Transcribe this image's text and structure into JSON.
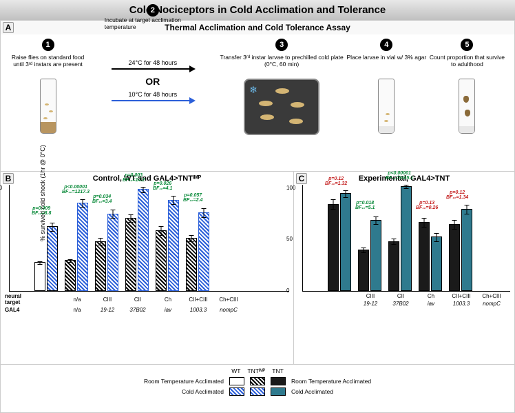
{
  "title": "Cold Nociceptors in Cold Acclimation and Tolerance",
  "panelA": {
    "subtitle": "Thermal Acclimation and Cold Tolerance Assay",
    "steps": [
      {
        "n": "1",
        "label": "Raise flies on standard food until 3ʳᵈ instars are present"
      },
      {
        "n": "2",
        "label": "Incubate at target acclimation temperature"
      },
      {
        "n": "3",
        "label": "Transfer 3ʳᵈ instar larvae to prechilled cold plate (0°C, 60 min)"
      },
      {
        "n": "4",
        "label": "Place larvae in vial w/ 3% agar"
      },
      {
        "n": "5",
        "label": "Count proportion that survive to adulthood"
      }
    ],
    "cond1": "24°C for 48 hours",
    "cond2": "10°C for 48 hours",
    "or": "OR"
  },
  "panelB": {
    "title": "Control, WT and GAL4>TNTᴵᴹᴾ",
    "ylabel": "% survived cold shock (1hr @ 0°C)",
    "ymax": 100,
    "groups": [
      {
        "nt": "n/a",
        "gal4": "n/a",
        "rt": 27,
        "ca": 61,
        "rt_err": 7,
        "ca_err": 7,
        "style": "wt",
        "p": "p=0.009",
        "bf": "BF₁₀=8.8"
      },
      {
        "nt": "CIII",
        "gal4": "19-12",
        "rt": 29,
        "ca": 83,
        "rt_err": 6,
        "ca_err": 5,
        "style": "imp",
        "p": "p<0.00001",
        "bf": "BF₁₀=1217.3"
      },
      {
        "nt": "CII",
        "gal4": "37B02",
        "rt": 47,
        "ca": 73,
        "rt_err": 8,
        "ca_err": 6,
        "style": "imp",
        "p": "p=0.034",
        "bf": "BF₁₀=3.4"
      },
      {
        "nt": "Ch",
        "gal4": "iav",
        "rt": 69,
        "ca": 96,
        "rt_err": 6,
        "ca_err": 3,
        "style": "imp",
        "p": "p=0.003",
        "bf": "BF₁₀=14.2"
      },
      {
        "nt": "CII+CIII",
        "gal4": "1003.3",
        "rt": 57,
        "ca": 86,
        "rt_err": 8,
        "ca_err": 5,
        "style": "imp",
        "p": "p=0.026",
        "bf": "BF₁₀=4.1"
      },
      {
        "nt": "Ch+CIII",
        "gal4": "nompC",
        "rt": 50,
        "ca": 74,
        "rt_err": 7,
        "ca_err": 6,
        "style": "imp",
        "p": "p=0.057",
        "bf": "BF₁₀=2.4"
      }
    ]
  },
  "panelC": {
    "title": "Experimental, GAL4>TNT",
    "ymax": 100,
    "groups": [
      {
        "nt": "CIII",
        "gal4": "19-12",
        "rt": 82,
        "ca": 92,
        "rt_err": 6,
        "ca_err": 4,
        "p": "p=0.12",
        "bf": "BF₁₀=1.32",
        "sig": false
      },
      {
        "nt": "CII",
        "gal4": "37B02",
        "rt": 39,
        "ca": 67,
        "rt_err": 7,
        "ca_err": 6,
        "p": "p=0.018",
        "bf": "BF₁₀=5.1",
        "sig": true
      },
      {
        "nt": "Ch",
        "gal4": "iav",
        "rt": 47,
        "ca": 99,
        "rt_err": 6,
        "ca_err": 2,
        "p": "p<0.00001",
        "bf": "BF₁₀=5345.1",
        "sig": true
      },
      {
        "nt": "CII+CIII",
        "gal4": "1003.3",
        "rt": 65,
        "ca": 51,
        "rt_err": 7,
        "ca_err": 8,
        "p": "p=0.13",
        "bf": "BF₁₀=0.26",
        "sig": false
      },
      {
        "nt": "Ch+CIII",
        "gal4": "nompC",
        "rt": 63,
        "ca": 77,
        "rt_err": 7,
        "ca_err": 6,
        "p": "p=0.12",
        "bf": "BF₁₀=1.34",
        "sig": false
      }
    ]
  },
  "legend": {
    "head": [
      "WT",
      "TNTᴵᴹᴾ",
      "TNT"
    ],
    "rt": "Room Temperature Acclimated",
    "ca": "Cold Acclimated"
  },
  "axis_labels": {
    "nt": "neural target",
    "gal4": "GAL4"
  },
  "yticks": [
    0,
    50,
    100
  ]
}
